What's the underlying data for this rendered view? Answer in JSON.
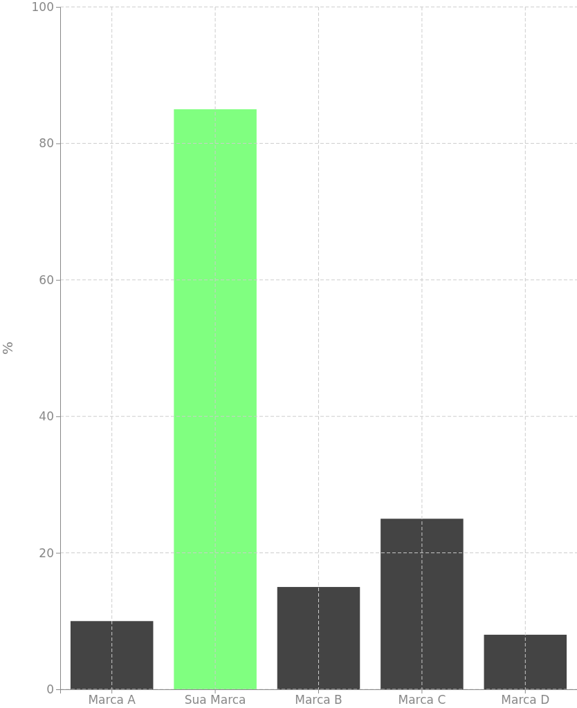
{
  "chart_data": {
    "type": "bar",
    "ylabel": "%",
    "categories": [
      "Marca A",
      "Sua Marca",
      "Marca B",
      "Marca C",
      "Marca D"
    ],
    "values": [
      10,
      85,
      15,
      25,
      8
    ],
    "colors": [
      "#444444",
      "#80ff80",
      "#444444",
      "#444444",
      "#444444"
    ],
    "ylim": [
      0,
      100
    ],
    "yticks": [
      0,
      20,
      40,
      60,
      80,
      100
    ],
    "grid": true
  }
}
